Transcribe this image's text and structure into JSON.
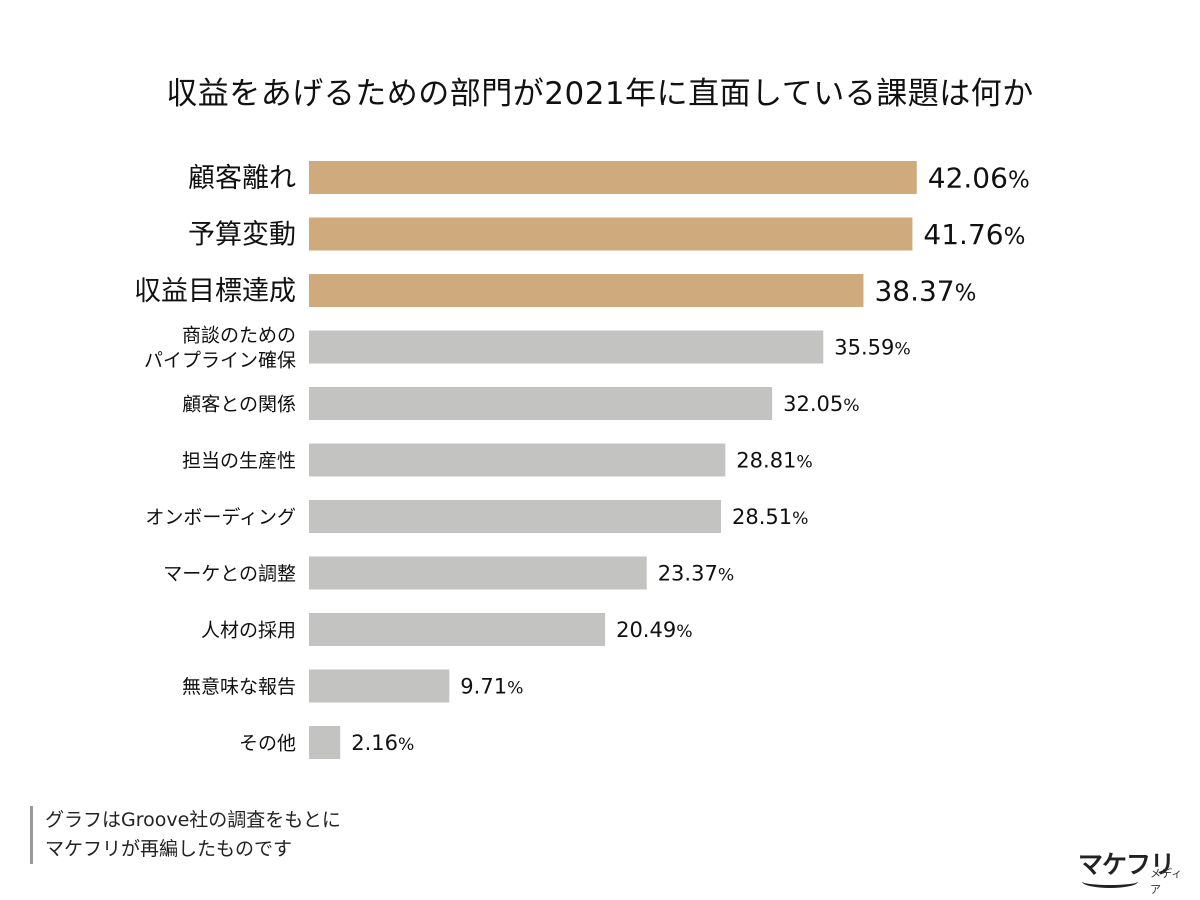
{
  "chart_data": {
    "type": "bar",
    "orientation": "horizontal",
    "title": "収益をあげるための部門が2021年に直面している課題は何か",
    "categories": [
      "顧客離れ",
      "予算変動",
      "収益目標達成",
      "商談のための\nパイプライン確保",
      "顧客との関係",
      "担当の生産性",
      "オンボーディング",
      "マーケとの調整",
      "人材の採用",
      "無意味な報告",
      "その他"
    ],
    "values": [
      42.06,
      41.76,
      38.37,
      35.59,
      32.05,
      28.81,
      28.51,
      23.37,
      20.49,
      9.71,
      2.16
    ],
    "value_labels": [
      "42.06",
      "41.76",
      "38.37",
      "35.59",
      "32.05",
      "28.81",
      "28.51",
      "23.37",
      "20.49",
      "9.71",
      "2.16"
    ],
    "value_suffix": "%",
    "highlight_count": 3,
    "colors": {
      "highlight": "#cfaa7c",
      "default": "#c3c3c1",
      "text": "#111111"
    },
    "grid": false,
    "legend": "none"
  },
  "note": {
    "lines": [
      "グラフはGroove社の調査をもとに",
      "マケフリが再編したものです"
    ]
  },
  "brand": {
    "name": "マケフリ",
    "sub": "メディア"
  }
}
